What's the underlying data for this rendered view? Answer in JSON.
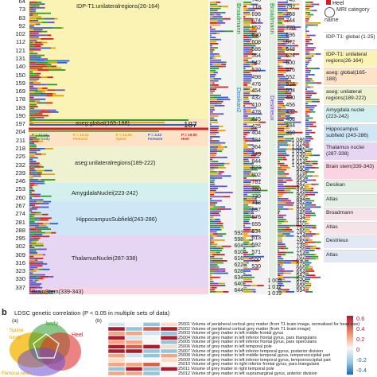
{
  "panel_a": {
    "row_numbers": [
      "64",
      "73",
      "83",
      "92",
      "102",
      "112",
      "121",
      "131",
      "140",
      "150",
      "159",
      "169",
      "178",
      "183",
      "190",
      "197",
      "204",
      "211",
      "218",
      "225",
      "232",
      "239",
      "246",
      "253",
      "260",
      "267",
      "274",
      "281",
      "288",
      "295",
      "302",
      "309",
      "316",
      "323",
      "330",
      "337"
    ],
    "regions": [
      {
        "label": "IDP-T1:unilateralregions(26-164)",
        "color": "#fbf3b4"
      },
      {
        "label": "aseg:global(165-188)",
        "color": "#fde2c6"
      },
      {
        "label": "aseg:unilateralregions(189-222)",
        "color": "#eef2d0"
      },
      {
        "label": "AmygdalaNuclei(223-242)",
        "color": "#d4f0ee"
      },
      {
        "label": "HippocampusSubfield(243-286)",
        "color": "#cfe6f7"
      },
      {
        "label": "ThalamusNuclei(287-338)",
        "color": "#e6d6f3"
      },
      {
        "label": "BrainStem(339-343)",
        "color": "#fbd3e3"
      }
    ],
    "marker_187": "187",
    "pvalues": [
      {
        "text": "P = 12.14",
        "sub": "Total body",
        "color": "#2e9b2e"
      },
      {
        "text": "P = 10.11",
        "sub": "Femoral",
        "color": "#e8a200"
      },
      {
        "text": "P = 14.52",
        "sub": "Spine",
        "color": "#e8a200"
      },
      {
        "text": "P = 3.32",
        "sub": "Forearm",
        "color": "#2a61c9"
      },
      {
        "text": "P = 19.65",
        "sub": "Heel",
        "color": "#d41f1f"
      }
    ],
    "mid_columns": [
      {
        "values": [
          "740",
          "718",
          "696",
          "674",
          "652",
          "630",
          "608",
          "586",
          "564",
          "542",
          "520",
          "498",
          "476",
          "454",
          "432",
          "410"
        ],
        "label": "Broadmann",
        "label_color": "#1a8f2e"
      },
      {
        "values": [
          "478",
          "445",
          "425",
          "404",
          "384",
          "364",
          "345",
          "844",
          "823",
          "802",
          "781",
          "760",
          "739",
          "718",
          "697",
          "676",
          "655",
          "634",
          "613",
          "592",
          "571",
          "550",
          "530"
        ],
        "label": "Desikan2",
        "label_color": "#2e7bbf"
      },
      {
        "values": [
          "740",
          "792",
          "768",
          "744",
          "720",
          "696",
          "672",
          "648",
          "624",
          "600",
          "576",
          "552",
          "528",
          "504",
          "480",
          "456",
          "432",
          "408",
          "384",
          "360"
        ],
        "label": "Destrieux",
        "label_color": "#6c3fb8"
      }
    ],
    "right_numbers": [
      "1 086",
      "1 074",
      "1 062",
      "1 050",
      "1 038",
      "1 026",
      "1 014",
      "1 002",
      "990",
      "978",
      "966",
      "954",
      "942",
      "930",
      "918",
      "906",
      "894",
      "882",
      "870",
      "858",
      "846",
      "834",
      "822",
      "810",
      "798",
      "786",
      "774",
      "762",
      "750",
      "738",
      "726",
      "714",
      "702",
      "690",
      "678",
      "666",
      "654",
      "642",
      "630",
      "618",
      "606",
      "594",
      "582",
      "570",
      "558",
      "546",
      "534",
      "522",
      "510",
      "498",
      "486",
      "474",
      "462",
      "450",
      "438",
      "426",
      "414",
      "402",
      "390",
      "378",
      "366",
      "354",
      "342",
      "330",
      "318",
      "306",
      "294",
      "282",
      "270",
      "258",
      "246",
      "234",
      "222",
      "210",
      "198",
      "186",
      "174",
      "162",
      "150",
      "138",
      "126",
      "114",
      "102",
      "1 005",
      "1 012",
      "1 019"
    ],
    "left_col_numbers": [
      "592",
      "598",
      "604",
      "610",
      "616",
      "622",
      "628",
      "634",
      "640",
      "644"
    ],
    "mid_col_bottom": [
      "1 005",
      "1 012",
      "1 019"
    ],
    "heel_label": "Heel",
    "mri_label": "MRI category name",
    "legend": [
      {
        "label": "IDP-T1: global (1-25)",
        "color": "#ffffff"
      },
      {
        "label": "IDP-T1: unilateral regions(26-164)",
        "color": "#fbf3b4"
      },
      {
        "label": "aseg: global(165-188)",
        "color": "#fde2c6"
      },
      {
        "label": "aseg: unilateral regions(189-222)",
        "color": "#eef2d0"
      },
      {
        "label": "Amygdala nuclei (223-242)",
        "color": "#d4f0ee"
      },
      {
        "label": "Hippocampus subfield (243-286)",
        "color": "#cfe6f7"
      },
      {
        "label": "Thalamus nuclei (287-338)",
        "color": "#e6d6f3"
      },
      {
        "label": "Brain stem(339-343)",
        "color": "#fbd3e3"
      },
      {
        "label": "Desikan",
        "color": "#e4efe3"
      },
      {
        "label": "Atlas",
        "color": "#e4efe3"
      },
      {
        "label": "Broadmann",
        "color": "#f4e4e9"
      },
      {
        "label": "Atlas",
        "color": "#f4e4e9"
      },
      {
        "label": "Destrieux",
        "color": "#e3e9f4"
      },
      {
        "label": "Atlas",
        "color": "#e3e9f4"
      }
    ]
  },
  "panel_b": {
    "letter": "b",
    "title": "LDSC genetic correlation (P < 0.05 in multiple sets of data)",
    "sub_a": "(a)",
    "sub_b": "(b)",
    "venn_labels": [
      {
        "text": "Spine",
        "color": "#e8a200"
      },
      {
        "text": "lumb",
        "color": "#e8a200"
      },
      {
        "text": "body",
        "color": "#2e9b2e"
      },
      {
        "text": "Heel",
        "color": "#d41f1f"
      },
      {
        "text": "Femoral neck",
        "color": "#e8a200"
      }
    ],
    "rows": [
      "25001 Volume of peripheral cortical grey matter (from T1 brain image, normalised for head size)",
      "25002 Volume of peripheral cortical grey matter (from T1 brain image)",
      "25003 Volume of grey matter in left middle frontal gyrus",
      "25004 Volume of grey matter in left inferior frontal gyrus, pars triangularis",
      "25005 Volume of grey matter in left inferior frontal gyrus, pars opercularis",
      "25006 Volume of grey matter in left temporal pole",
      "25007 Volume of grey matter in left inferior temporal gyrus, posterior division",
      "25008 Volume of grey matter in left middle temporal gyrus, temporooccipital part",
      "25009 Volume of grey matter in left inferior temporal gyrus, temporooccipital part",
      "25010 Volume of grey matter in right inferior frontal gyrus, pars triangularis",
      "25011 Volume of grey matter in right temporal pole",
      "25012 Volume of grey matter in left supramarginal gyrus, anterior division"
    ],
    "colorbar_ticks": [
      "0.6",
      "0.4",
      "0.2",
      "0",
      "-0.2",
      "-0.4"
    ]
  }
}
